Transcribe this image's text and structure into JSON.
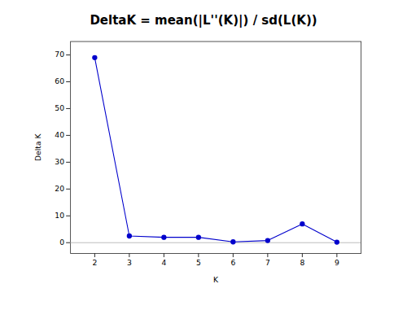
{
  "chart_data": {
    "type": "line",
    "title": "DeltaK = mean(|L''(K)|) / sd(L(K))",
    "xlabel": "K",
    "ylabel": "Delta K",
    "x": [
      2,
      3,
      4,
      5,
      6,
      7,
      8,
      9
    ],
    "values": [
      69.0,
      2.5,
      2.0,
      2.0,
      0.3,
      0.8,
      7.0,
      0.2
    ],
    "color": "#0000cc",
    "marker": "circle",
    "hline": {
      "y": 0,
      "color": "#b0b0b0"
    },
    "xlim": [
      1.3,
      9.7
    ],
    "xticks": [
      2,
      3,
      4,
      5,
      6,
      7,
      8,
      9
    ],
    "ylim": [
      -4,
      75
    ],
    "yticks": [
      0,
      10,
      20,
      30,
      40,
      50,
      60,
      70
    ],
    "grid": false
  }
}
